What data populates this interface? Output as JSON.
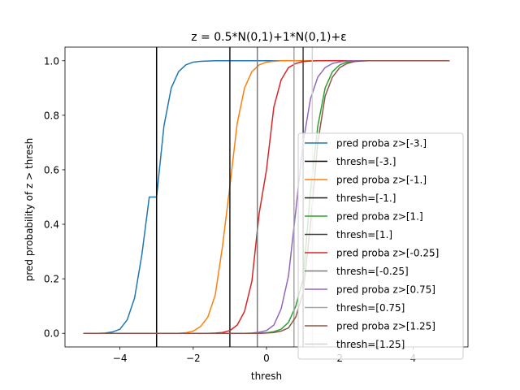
{
  "chart_data": {
    "type": "line",
    "title": "z = 0.5*N(0,1)+1*N(0,1)+ε",
    "xlabel": "thresh",
    "ylabel": "pred probability of z > thresh",
    "xlim": [
      -5.5,
      5.5
    ],
    "ylim": [
      -0.05,
      1.05
    ],
    "xticks": [
      -4,
      -2,
      0,
      2,
      4
    ],
    "xtick_labels": [
      "−4",
      "−2",
      "0",
      "2",
      "4"
    ],
    "yticks": [
      0.0,
      0.2,
      0.4,
      0.6,
      0.8,
      1.0
    ],
    "ytick_labels": [
      "0.0",
      "0.2",
      "0.4",
      "0.6",
      "0.8",
      "1.0"
    ],
    "grid": false,
    "legend_position": "center-right",
    "x": [
      -5.0,
      -4.8,
      -4.6,
      -4.4,
      -4.2,
      -4.0,
      -3.8,
      -3.6,
      -3.4,
      -3.2,
      -3.0,
      -2.8,
      -2.6,
      -2.4,
      -2.2,
      -2.0,
      -1.8,
      -1.6,
      -1.4,
      -1.2,
      -1.0,
      -0.8,
      -0.6,
      -0.4,
      -0.2,
      0.0,
      0.2,
      0.4,
      0.6,
      0.8,
      1.0,
      1.2,
      1.4,
      1.6,
      1.8,
      2.0,
      2.2,
      2.4,
      2.6,
      2.8,
      3.0,
      3.2,
      3.4,
      3.6,
      3.8,
      4.0,
      4.2,
      4.4,
      4.6,
      4.8,
      5.0
    ],
    "series": [
      {
        "name": "pred proba z>[-3.]",
        "color": "#1f77b4",
        "values": [
          0.0,
          0.0,
          0.0,
          0.001,
          0.005,
          0.015,
          0.05,
          0.13,
          0.29,
          0.5,
          0.5,
          0.76,
          0.9,
          0.96,
          0.985,
          0.995,
          0.998,
          0.999,
          1.0,
          1.0,
          1.0,
          1.0,
          1.0,
          1.0,
          1.0,
          1.0,
          1.0,
          1.0,
          1.0,
          1.0,
          1.0,
          1.0,
          1.0,
          1.0,
          1.0,
          1.0,
          1.0,
          1.0,
          1.0,
          1.0,
          1.0,
          1.0,
          1.0,
          1.0,
          1.0,
          1.0,
          1.0,
          1.0,
          1.0,
          1.0,
          1.0
        ]
      },
      {
        "name": "pred proba z>[-1.]",
        "color": "#ff7f0e",
        "values": [
          0.0,
          0.0,
          0.0,
          0.0,
          0.0,
          0.0,
          0.0,
          0.0,
          0.0,
          0.0,
          0.0,
          0.0,
          0.0,
          0.0,
          0.002,
          0.008,
          0.025,
          0.06,
          0.14,
          0.32,
          0.54,
          0.77,
          0.9,
          0.96,
          0.985,
          0.995,
          0.998,
          1.0,
          1.0,
          1.0,
          1.0,
          1.0,
          1.0,
          1.0,
          1.0,
          1.0,
          1.0,
          1.0,
          1.0,
          1.0,
          1.0,
          1.0,
          1.0,
          1.0,
          1.0,
          1.0,
          1.0,
          1.0,
          1.0,
          1.0,
          1.0
        ]
      },
      {
        "name": "pred proba z>[1.]",
        "color": "#2ca02c",
        "values": [
          0.0,
          0.0,
          0.0,
          0.0,
          0.0,
          0.0,
          0.0,
          0.0,
          0.0,
          0.0,
          0.0,
          0.0,
          0.0,
          0.0,
          0.0,
          0.0,
          0.0,
          0.0,
          0.0,
          0.0,
          0.0,
          0.0,
          0.0,
          0.0,
          0.0,
          0.002,
          0.006,
          0.015,
          0.04,
          0.1,
          0.2,
          0.52,
          0.76,
          0.9,
          0.96,
          0.985,
          0.995,
          0.998,
          1.0,
          1.0,
          1.0,
          1.0,
          1.0,
          1.0,
          1.0,
          1.0,
          1.0,
          1.0,
          1.0,
          1.0,
          1.0
        ]
      },
      {
        "name": "pred proba z>[-0.25]",
        "color": "#d62728",
        "values": [
          0.0,
          0.0,
          0.0,
          0.0,
          0.0,
          0.0,
          0.0,
          0.0,
          0.0,
          0.0,
          0.0,
          0.0,
          0.0,
          0.0,
          0.0,
          0.0,
          0.0,
          0.0,
          0.001,
          0.003,
          0.01,
          0.03,
          0.08,
          0.19,
          0.44,
          0.6,
          0.83,
          0.93,
          0.975,
          0.99,
          0.997,
          0.999,
          1.0,
          1.0,
          1.0,
          1.0,
          1.0,
          1.0,
          1.0,
          1.0,
          1.0,
          1.0,
          1.0,
          1.0,
          1.0,
          1.0,
          1.0,
          1.0,
          1.0,
          1.0,
          1.0
        ]
      },
      {
        "name": "pred proba z>[0.75]",
        "color": "#9467bd",
        "values": [
          0.0,
          0.0,
          0.0,
          0.0,
          0.0,
          0.0,
          0.0,
          0.0,
          0.0,
          0.0,
          0.0,
          0.0,
          0.0,
          0.0,
          0.0,
          0.0,
          0.0,
          0.0,
          0.0,
          0.0,
          0.0,
          0.0,
          0.0,
          0.001,
          0.004,
          0.01,
          0.03,
          0.09,
          0.21,
          0.45,
          0.7,
          0.86,
          0.94,
          0.975,
          0.99,
          0.996,
          0.999,
          1.0,
          1.0,
          1.0,
          1.0,
          1.0,
          1.0,
          1.0,
          1.0,
          1.0,
          1.0,
          1.0,
          1.0,
          1.0,
          1.0
        ]
      },
      {
        "name": "pred proba z>[1.25]",
        "color": "#8c564b",
        "values": [
          0.0,
          0.0,
          0.0,
          0.0,
          0.0,
          0.0,
          0.0,
          0.0,
          0.0,
          0.0,
          0.0,
          0.0,
          0.0,
          0.0,
          0.0,
          0.0,
          0.0,
          0.0,
          0.0,
          0.0,
          0.0,
          0.0,
          0.0,
          0.0,
          0.0,
          0.001,
          0.003,
          0.008,
          0.02,
          0.06,
          0.15,
          0.4,
          0.7,
          0.87,
          0.94,
          0.975,
          0.99,
          0.997,
          0.999,
          1.0,
          1.0,
          1.0,
          1.0,
          1.0,
          1.0,
          1.0,
          1.0,
          1.0,
          1.0,
          1.0,
          1.0
        ]
      }
    ],
    "thresholds": [
      {
        "name": "thresh=[-3.]",
        "x": -3.0,
        "color": "#000000"
      },
      {
        "name": "thresh=[-1.]",
        "x": -1.0,
        "color": "#1a1a1a"
      },
      {
        "name": "thresh=[1.]",
        "x": 1.0,
        "color": "#404040"
      },
      {
        "name": "thresh=[-0.25]",
        "x": -0.25,
        "color": "#7a7a7a"
      },
      {
        "name": "thresh=[0.75]",
        "x": 0.75,
        "color": "#a6a6a6"
      },
      {
        "name": "thresh=[1.25]",
        "x": 1.25,
        "color": "#d3d3d3"
      }
    ],
    "legend_order": [
      {
        "kind": "series",
        "index": 0
      },
      {
        "kind": "threshold",
        "index": 0
      },
      {
        "kind": "series",
        "index": 1
      },
      {
        "kind": "threshold",
        "index": 1
      },
      {
        "kind": "series",
        "index": 2
      },
      {
        "kind": "threshold",
        "index": 2
      },
      {
        "kind": "series",
        "index": 3
      },
      {
        "kind": "threshold",
        "index": 3
      },
      {
        "kind": "series",
        "index": 4
      },
      {
        "kind": "threshold",
        "index": 4
      },
      {
        "kind": "series",
        "index": 5
      },
      {
        "kind": "threshold",
        "index": 5
      }
    ]
  }
}
